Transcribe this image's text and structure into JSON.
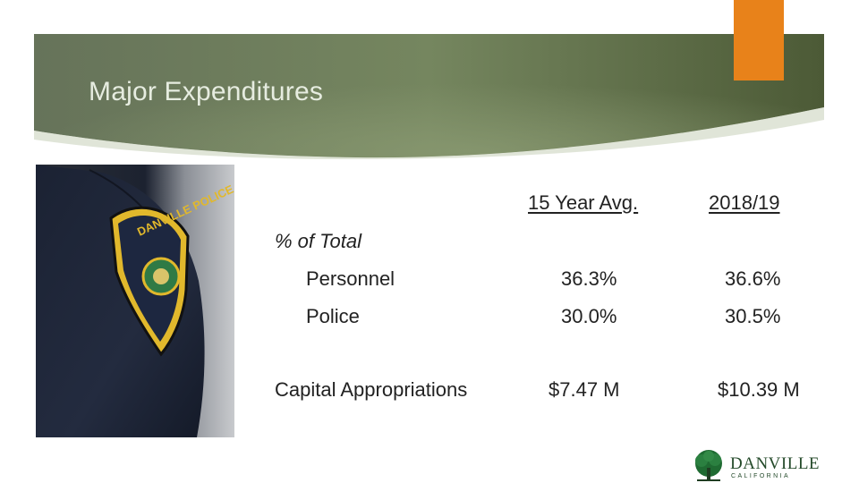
{
  "slide": {
    "title": "Major Expenditures",
    "accent_color": "#e8821a",
    "header_color": "#5e6e4a"
  },
  "table": {
    "columns": [
      "15 Year Avg.",
      "2018/19"
    ],
    "section_label": "% of Total",
    "rows": [
      {
        "label": "Personnel",
        "avg": "36.3%",
        "current": "36.6%"
      },
      {
        "label": "Police",
        "avg": "30.0%",
        "current": "30.5%"
      },
      {
        "label": "Capital Appropriations",
        "avg": "$7.47 M",
        "current": "$10.39 M"
      }
    ]
  },
  "photo": {
    "patch_text": "DANVILLE POLICE"
  },
  "logo": {
    "name": "DANVILLE",
    "subtitle": "CALIFORNIA",
    "icon": "oak-tree-icon"
  }
}
